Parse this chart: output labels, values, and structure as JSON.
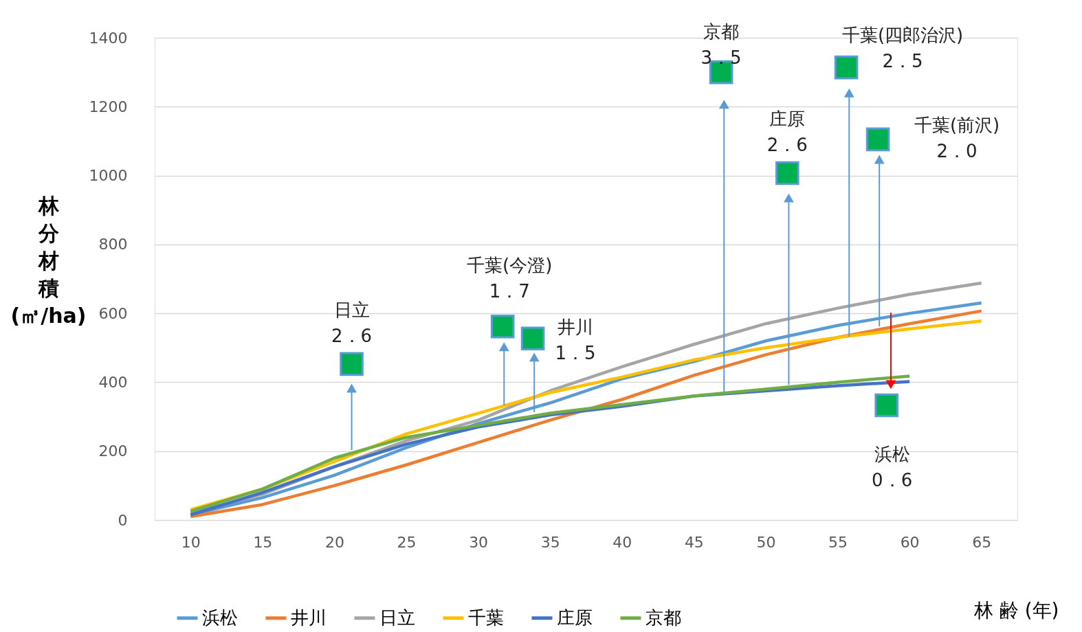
{
  "chart_data": {
    "type": "line",
    "xlabel": "林 齢 (年)",
    "ylabel": "林分材積(㎥/ha)",
    "x": [
      10,
      15,
      20,
      25,
      30,
      35,
      40,
      45,
      50,
      55,
      60,
      65
    ],
    "xlim": [
      7.5,
      67.5
    ],
    "xticks": [
      10,
      15,
      20,
      25,
      30,
      35,
      40,
      45,
      50,
      55,
      60,
      65
    ],
    "ylim": [
      0,
      1400
    ],
    "yticks": [
      0,
      200,
      400,
      600,
      800,
      {
        "value": 1000,
        "label": "1000"
      },
      {
        "value": 1200,
        "label": "1200"
      },
      {
        "value": 1400,
        "label": "1400"
      }
    ],
    "grid": "y",
    "legend": "bottom",
    "series": [
      {
        "name": "浜松",
        "color": "#5b9bd5",
        "values": [
          15,
          65,
          130,
          210,
          280,
          340,
          410,
          460,
          520,
          565,
          600,
          630
        ]
      },
      {
        "name": "井川",
        "color": "#ed7d31",
        "values": [
          10,
          45,
          100,
          160,
          225,
          290,
          350,
          420,
          480,
          530,
          570,
          607
        ]
      },
      {
        "name": "日立",
        "color": "#a5a5a5",
        "values": [
          20,
          75,
          155,
          230,
          290,
          375,
          445,
          510,
          570,
          615,
          655,
          688
        ]
      },
      {
        "name": "千葉",
        "color": "#ffc000",
        "values": [
          30,
          90,
          170,
          250,
          310,
          370,
          415,
          465,
          500,
          530,
          555,
          578
        ]
      },
      {
        "name": "庄原",
        "color": "#4472c4",
        "values": [
          15,
          80,
          155,
          220,
          270,
          305,
          330,
          360,
          375,
          390,
          402,
          null
        ]
      },
      {
        "name": "京都",
        "color": "#70ad47",
        "values": [
          25,
          90,
          180,
          240,
          275,
          310,
          335,
          360,
          380,
          400,
          418,
          null
        ]
      },
      {
        "type": "scatter",
        "marker": "square",
        "color": "#00b050",
        "x": [
          21.2,
          31.7,
          33.8,
          46.9,
          51.5,
          55.6,
          57.8,
          58.4
        ],
        "values": [
          453,
          562,
          527,
          1300,
          1007,
          1314,
          1105,
          333
        ]
      },
      {
        "type": "line",
        "marker": "triangle",
        "color": "#5b9bd5",
        "x": [
          21.2,
          21.2
        ],
        "values": [
          203,
          383
        ]
      },
      {
        "type": "line",
        "marker": "triangle",
        "color": "#5b9bd5",
        "x": [
          31.8,
          31.8
        ],
        "values": [
          333,
          503
        ]
      },
      {
        "type": "line",
        "marker": "triangle",
        "color": "#5b9bd5",
        "x": [
          33.9,
          33.9
        ],
        "values": [
          313,
          473
        ]
      },
      {
        "type": "line",
        "marker": "triangle",
        "color": "#5b9bd5",
        "x": [
          47.1,
          47.1
        ],
        "values": [
          373,
          1207
        ]
      },
      {
        "type": "line",
        "marker": "triangle",
        "color": "#5b9bd5",
        "x": [
          51.6,
          51.6
        ],
        "values": [
          393,
          935
        ]
      },
      {
        "type": "line",
        "marker": "triangle",
        "color": "#5b9bd5",
        "x": [
          55.8,
          55.8
        ],
        "values": [
          532,
          1240
        ]
      },
      {
        "type": "line",
        "marker": "triangle",
        "color": "#5b9bd5",
        "x": [
          57.9,
          57.9
        ],
        "values": [
          562,
          1047
        ]
      },
      {
        "type": "line",
        "marker": "triangle",
        "color": "#ff0000",
        "x": [
          58.7,
          58.7
        ],
        "values": [
          602,
          393
        ]
      }
    ],
    "annotations": [
      {
        "text": "日立\n2．6",
        "x": 21.2,
        "y": 453
      },
      {
        "text": "千葉(今澄)\n1．7",
        "x": 31.7,
        "y": 562
      },
      {
        "text": "井川\n1．5",
        "x": 33.8,
        "y": 527
      },
      {
        "text": "京都\n3．5",
        "x": 46.9,
        "y": 1300
      },
      {
        "text": "千葉(四郎治沢)\n2．5",
        "x": 55.6,
        "y": 1314
      },
      {
        "text": "庄原\n2．6",
        "x": 51.5,
        "y": 1007
      },
      {
        "text": "千葉(前沢)\n2．0",
        "x": 57.8,
        "y": 1105
      },
      {
        "text": "浜松\n0．6",
        "x": 58.4,
        "y": 333
      }
    ]
  }
}
